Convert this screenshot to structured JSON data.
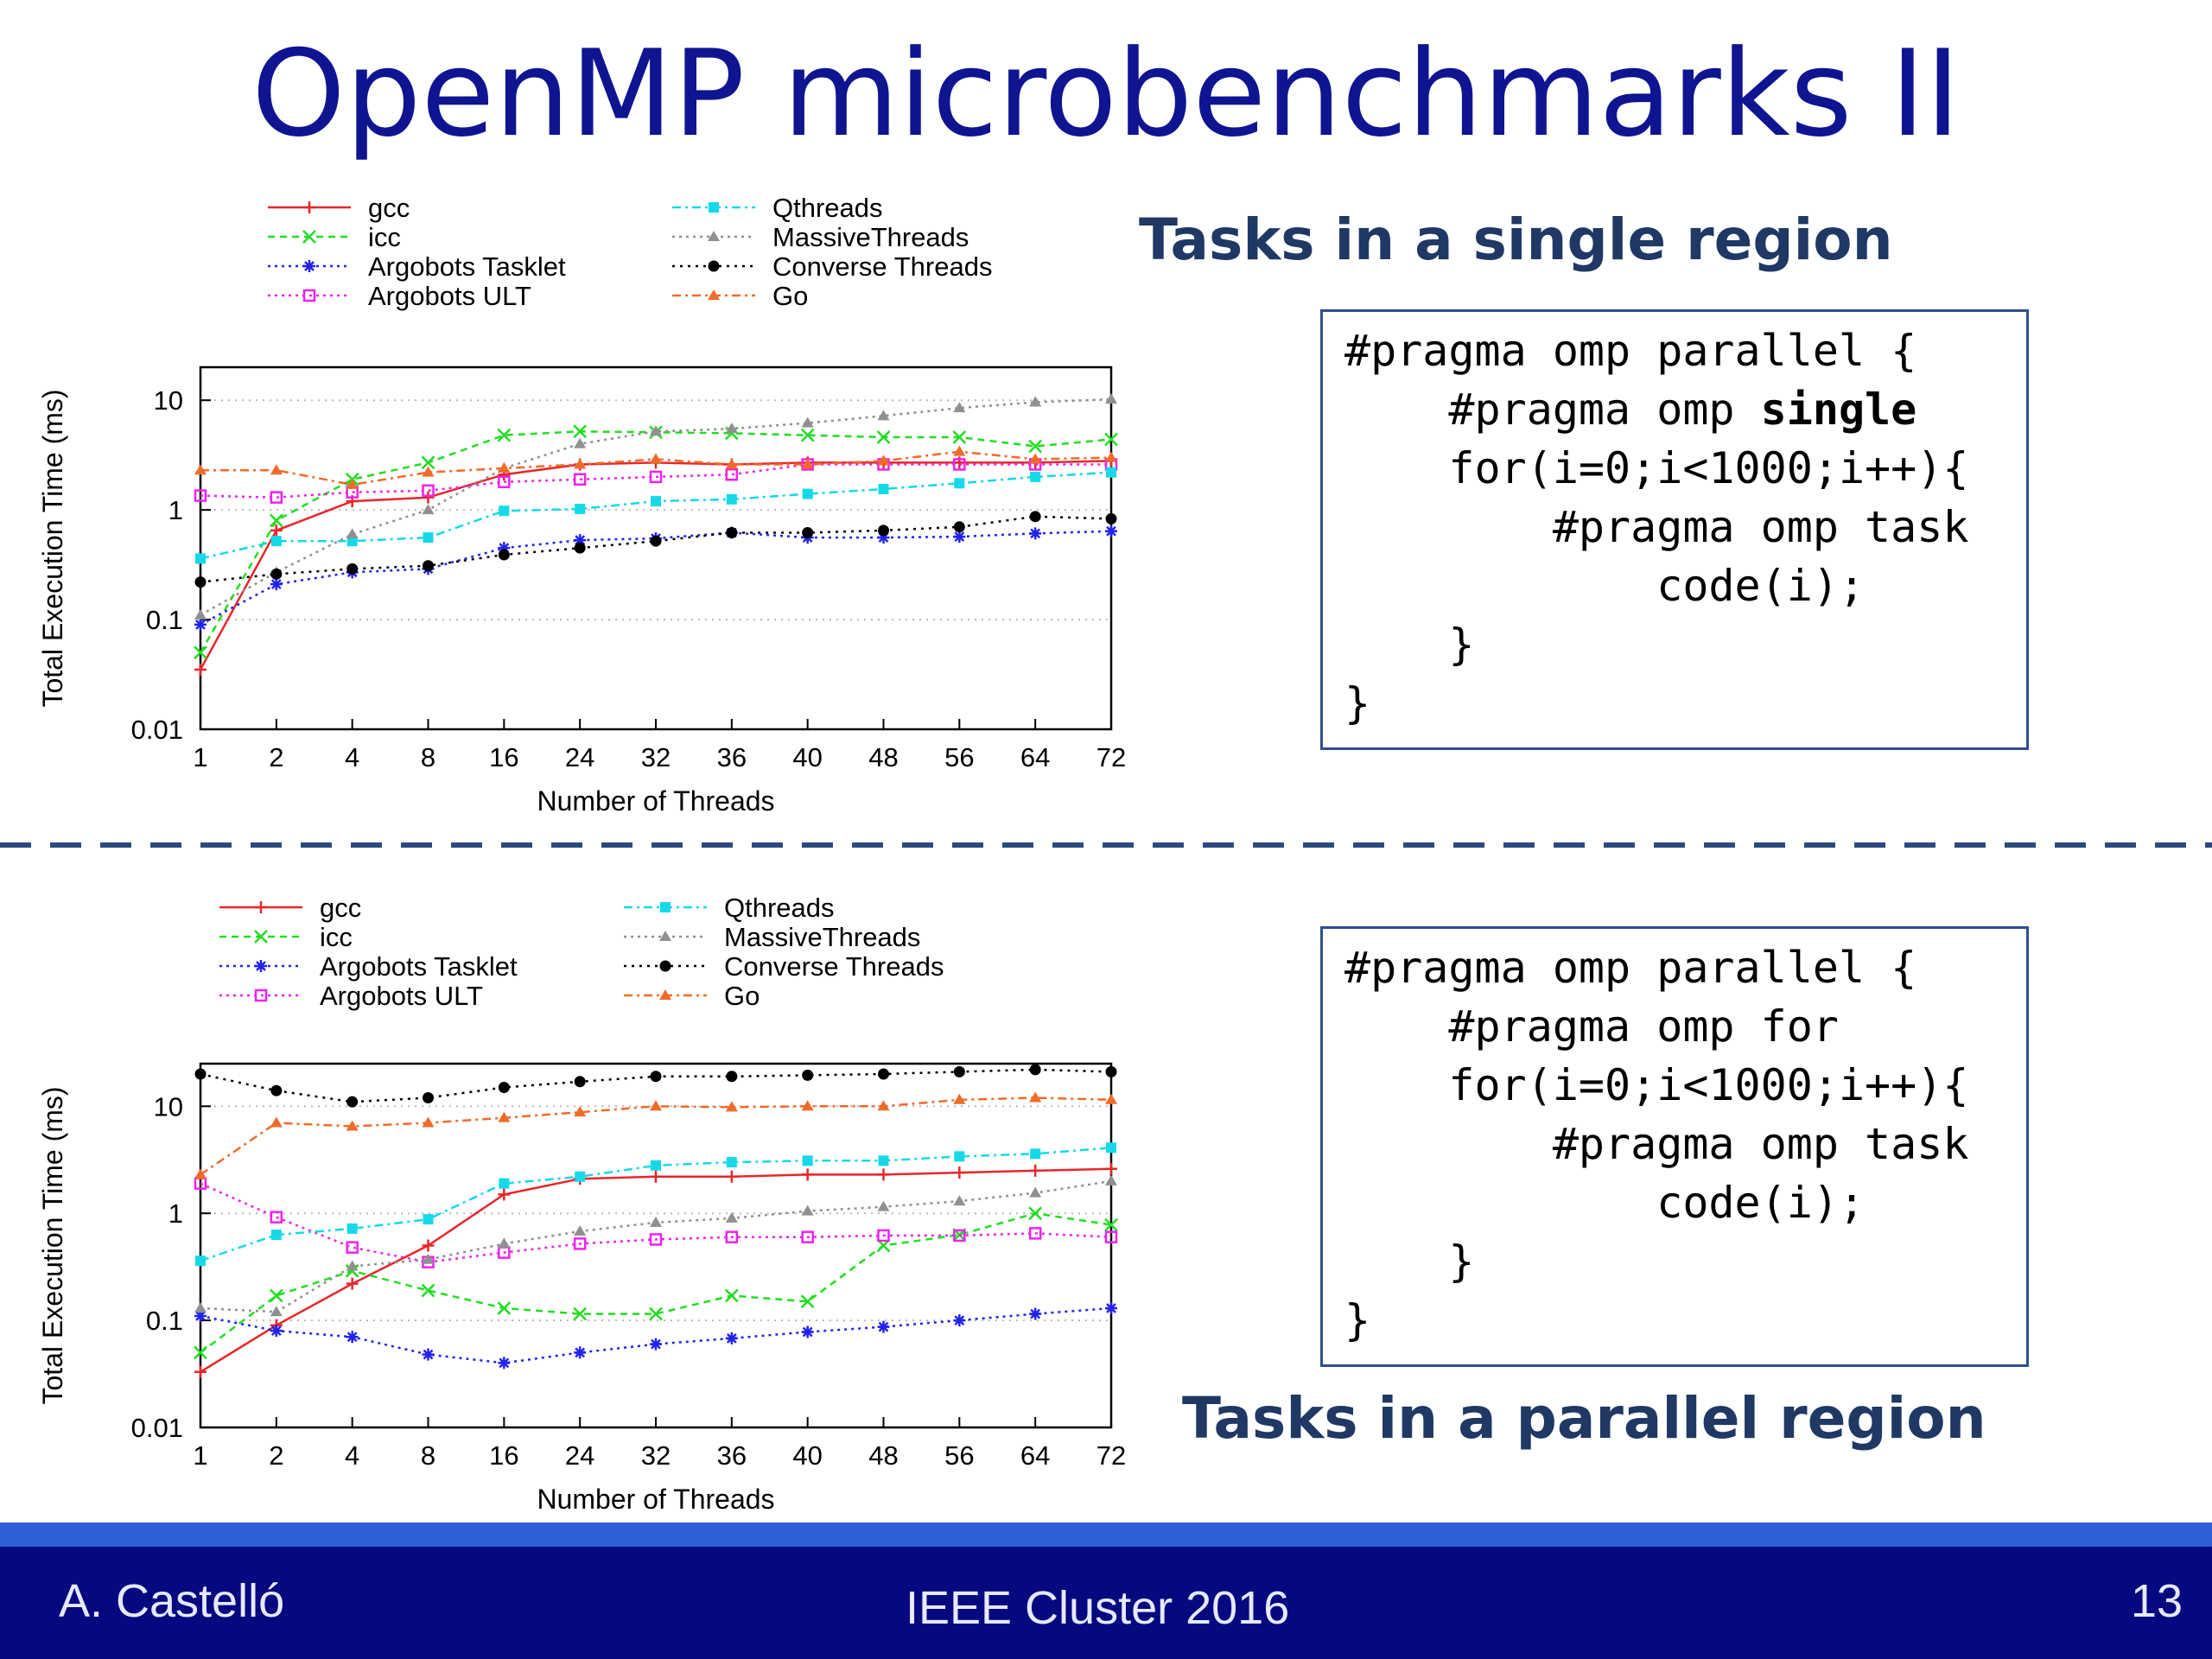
{
  "slide": {
    "title": "OpenMP microbenchmarks II",
    "top_heading": "Tasks in a single region",
    "bottom_heading": "Tasks in a parallel region"
  },
  "code_top": [
    {
      "pre": "#pragma omp parallel {",
      "bold": "",
      "post": ""
    },
    {
      "pre": "    #pragma omp ",
      "bold": "single",
      "post": ""
    },
    {
      "pre": "    for(i=0;i<1000;i++){",
      "bold": "",
      "post": ""
    },
    {
      "pre": "        #pragma omp task",
      "bold": "",
      "post": ""
    },
    {
      "pre": "            code(i);",
      "bold": "",
      "post": ""
    },
    {
      "pre": "    }",
      "bold": "",
      "post": ""
    },
    {
      "pre": "}",
      "bold": "",
      "post": ""
    }
  ],
  "code_bottom": [
    {
      "pre": "#pragma omp parallel {",
      "bold": "",
      "post": ""
    },
    {
      "pre": "    #pragma omp for",
      "bold": "",
      "post": ""
    },
    {
      "pre": "    for(i=0;i<1000;i++){",
      "bold": "",
      "post": ""
    },
    {
      "pre": "        #pragma omp task",
      "bold": "",
      "post": ""
    },
    {
      "pre": "            code(i);",
      "bold": "",
      "post": ""
    },
    {
      "pre": "    }",
      "bold": "",
      "post": ""
    },
    {
      "pre": "}",
      "bold": "",
      "post": ""
    }
  ],
  "footer": {
    "author": "A. Castelló",
    "venue": "IEEE Cluster 2016",
    "page": "13"
  },
  "colors": {
    "title": "#0f1491",
    "heading": "#1f3864",
    "footer_bg": "#06087f",
    "footer_stripe": "#2f60d6",
    "divider": "#2a4a7f"
  },
  "chart_data": [
    {
      "type": "line",
      "xlabel": "Number of Threads",
      "ylabel": "Total Execution Time (ms)",
      "y_scale": "log",
      "ylim": [
        0.01,
        20
      ],
      "y_ticks": [
        0.01,
        0.1,
        1,
        10
      ],
      "y_tick_labels": [
        "0.01",
        "0.1",
        "1",
        "10"
      ],
      "categories": [
        "1",
        "2",
        "4",
        "8",
        "16",
        "24",
        "32",
        "36",
        "40",
        "48",
        "56",
        "64",
        "72"
      ],
      "grid": "horizontal dotted",
      "legend_position": "top",
      "series": [
        {
          "name": "gcc",
          "color": "#e8262a",
          "dash": "",
          "marker": "plus",
          "values": [
            0.035,
            0.65,
            1.2,
            1.3,
            2.1,
            2.6,
            2.7,
            2.6,
            2.7,
            2.7,
            2.7,
            2.7,
            2.8
          ]
        },
        {
          "name": "icc",
          "color": "#22dd22",
          "dash": "8,6",
          "marker": "x",
          "values": [
            0.05,
            0.8,
            1.9,
            2.7,
            4.8,
            5.2,
            5.1,
            5.0,
            4.8,
            4.6,
            4.6,
            3.8,
            4.4
          ]
        },
        {
          "name": "Argobots Tasklet",
          "color": "#2222ee",
          "dash": "3,5",
          "marker": "star",
          "values": [
            0.09,
            0.21,
            0.27,
            0.29,
            0.45,
            0.53,
            0.55,
            0.62,
            0.56,
            0.56,
            0.57,
            0.61,
            0.64
          ]
        },
        {
          "name": "Argobots ULT",
          "color": "#ee22ee",
          "dash": "3,5",
          "marker": "square",
          "values": [
            1.35,
            1.3,
            1.45,
            1.5,
            1.8,
            1.9,
            2.0,
            2.1,
            2.6,
            2.6,
            2.6,
            2.6,
            2.6
          ]
        },
        {
          "name": "Qthreads",
          "color": "#15d9e8",
          "dash": "10,5,3,5",
          "marker": "filled-square",
          "values": [
            0.36,
            0.52,
            0.52,
            0.56,
            0.98,
            1.02,
            1.2,
            1.25,
            1.4,
            1.55,
            1.75,
            2.0,
            2.2
          ]
        },
        {
          "name": "MassiveThreads",
          "color": "#909090",
          "dash": "3,5",
          "marker": "triangle",
          "values": [
            0.11,
            0.27,
            0.6,
            1.0,
            2.4,
            4.0,
            5.2,
            5.5,
            6.2,
            7.2,
            8.5,
            9.6,
            10.2
          ]
        },
        {
          "name": "Converse Threads",
          "color": "#000000",
          "dash": "3,6",
          "marker": "circle",
          "values": [
            0.22,
            0.26,
            0.29,
            0.31,
            0.39,
            0.45,
            0.52,
            0.62,
            0.62,
            0.65,
            0.7,
            0.87,
            0.83
          ]
        },
        {
          "name": "Go",
          "color": "#f06a28",
          "dash": "10,5,3,5",
          "marker": "triangle",
          "values": [
            2.3,
            2.3,
            1.7,
            2.2,
            2.4,
            2.6,
            2.9,
            2.6,
            2.6,
            2.8,
            3.4,
            2.9,
            3.0
          ]
        }
      ]
    },
    {
      "type": "line",
      "xlabel": "Number of Threads",
      "ylabel": "Total Execution Time (ms)",
      "y_scale": "log",
      "ylim": [
        0.01,
        25
      ],
      "y_ticks": [
        0.01,
        0.1,
        1,
        10
      ],
      "y_tick_labels": [
        "0.01",
        "0.1",
        "1",
        "10"
      ],
      "categories": [
        "1",
        "2",
        "4",
        "8",
        "16",
        "24",
        "32",
        "36",
        "40",
        "48",
        "56",
        "64",
        "72"
      ],
      "grid": "horizontal dotted",
      "legend_position": "top",
      "series": [
        {
          "name": "gcc",
          "color": "#e8262a",
          "dash": "",
          "marker": "plus",
          "values": [
            0.033,
            0.09,
            0.22,
            0.5,
            1.5,
            2.1,
            2.2,
            2.2,
            2.3,
            2.3,
            2.4,
            2.5,
            2.6
          ]
        },
        {
          "name": "icc",
          "color": "#22dd22",
          "dash": "8,6",
          "marker": "x",
          "values": [
            0.05,
            0.17,
            0.29,
            0.19,
            0.13,
            0.115,
            0.115,
            0.17,
            0.15,
            0.5,
            0.63,
            1.0,
            0.78
          ]
        },
        {
          "name": "Argobots Tasklet",
          "color": "#2222ee",
          "dash": "3,5",
          "marker": "star",
          "values": [
            0.11,
            0.08,
            0.07,
            0.048,
            0.04,
            0.05,
            0.06,
            0.068,
            0.078,
            0.087,
            0.1,
            0.115,
            0.13
          ]
        },
        {
          "name": "Argobots ULT",
          "color": "#ee22ee",
          "dash": "3,5",
          "marker": "square",
          "values": [
            1.9,
            0.92,
            0.48,
            0.35,
            0.43,
            0.52,
            0.57,
            0.6,
            0.6,
            0.62,
            0.62,
            0.65,
            0.6
          ]
        },
        {
          "name": "Qthreads",
          "color": "#15d9e8",
          "dash": "10,5,3,5",
          "marker": "filled-square",
          "values": [
            0.36,
            0.63,
            0.72,
            0.88,
            1.9,
            2.2,
            2.8,
            3.0,
            3.1,
            3.1,
            3.4,
            3.6,
            4.1
          ]
        },
        {
          "name": "MassiveThreads",
          "color": "#909090",
          "dash": "3,5",
          "marker": "triangle",
          "values": [
            0.13,
            0.12,
            0.32,
            0.37,
            0.52,
            0.68,
            0.82,
            0.9,
            1.05,
            1.15,
            1.3,
            1.55,
            2.0
          ]
        },
        {
          "name": "Converse Threads",
          "color": "#000000",
          "dash": "3,6",
          "marker": "circle",
          "values": [
            20,
            14,
            11,
            12,
            15,
            17,
            19,
            19,
            19.5,
            20,
            21,
            22,
            21
          ]
        },
        {
          "name": "Go",
          "color": "#f06a28",
          "dash": "10,5,3,5",
          "marker": "triangle",
          "values": [
            2.3,
            7.0,
            6.5,
            7.0,
            7.8,
            8.8,
            10,
            9.8,
            10,
            10,
            11.5,
            12,
            11.5
          ]
        }
      ]
    }
  ]
}
